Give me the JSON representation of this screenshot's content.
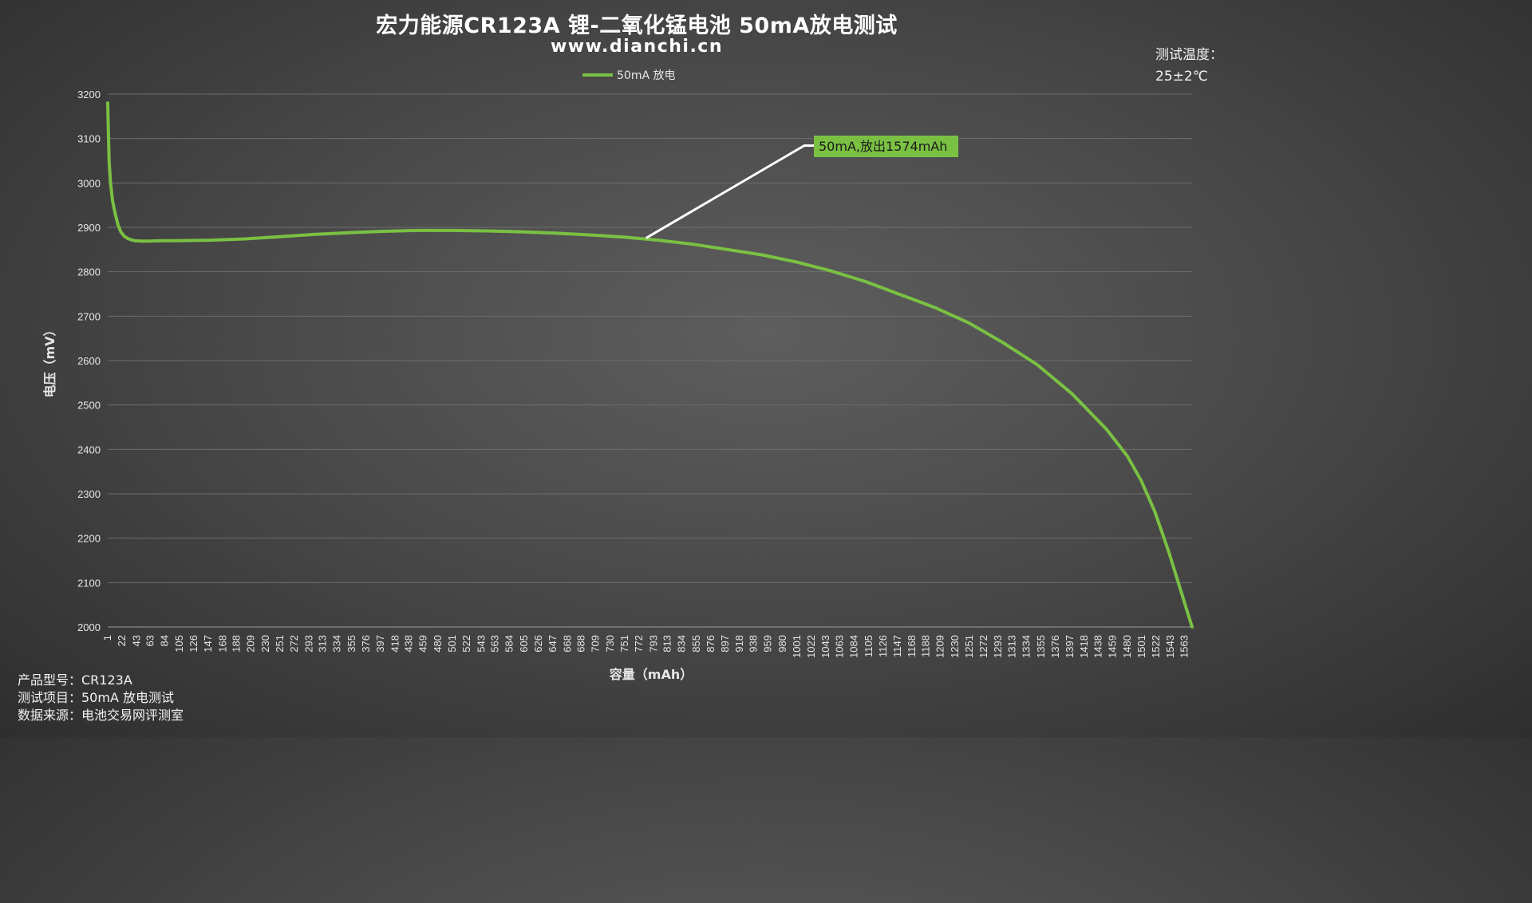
{
  "header": {
    "title": "宏力能源CR123A 锂-二氧化锰电池 50mA放电测试",
    "subtitle": "www.dianchi.cn"
  },
  "temperature": {
    "label": "测试温度：",
    "value": "25±2℃"
  },
  "info": {
    "model": "产品型号：CR123A",
    "test_item": "测试项目：50mA 放电测试",
    "source": "数据来源：电池交易网评测室"
  },
  "chart_data": {
    "type": "line",
    "title": "宏力能源CR123A 锂-二氧化锰电池 50mA放电测试",
    "subtitle": "www.dianchi.cn",
    "xlabel": "容量（mAh）",
    "ylabel": "电压（mV）",
    "ylim": [
      2000,
      3200
    ],
    "yticks": [
      2000,
      2100,
      2200,
      2300,
      2400,
      2500,
      2600,
      2700,
      2800,
      2900,
      3000,
      3100,
      3200
    ],
    "xticks": [
      1,
      22,
      43,
      63,
      84,
      105,
      126,
      147,
      168,
      188,
      209,
      230,
      251,
      272,
      293,
      313,
      334,
      355,
      376,
      397,
      418,
      438,
      459,
      480,
      501,
      522,
      543,
      563,
      584,
      605,
      626,
      647,
      668,
      688,
      709,
      730,
      751,
      772,
      793,
      813,
      834,
      855,
      876,
      897,
      918,
      938,
      959,
      980,
      1001,
      1022,
      1043,
      1063,
      1084,
      1105,
      1126,
      1147,
      1168,
      1188,
      1209,
      1230,
      1251,
      1272,
      1293,
      1313,
      1334,
      1355,
      1376,
      1397,
      1418,
      1438,
      1459,
      1480,
      1501,
      1522,
      1543,
      1563
    ],
    "xlim": [
      1,
      1574
    ],
    "grid": true,
    "legend_position": "top-center",
    "colors": {
      "series": "#7ac143",
      "leader": "#ffffff"
    },
    "series": [
      {
        "name": "50mA 放电",
        "x": [
          1,
          2,
          3,
          5,
          8,
          12,
          16,
          20,
          25,
          30,
          35,
          40,
          50,
          60,
          80,
          100,
          150,
          200,
          250,
          300,
          350,
          400,
          450,
          500,
          550,
          600,
          650,
          700,
          750,
          800,
          850,
          900,
          950,
          1000,
          1050,
          1100,
          1150,
          1200,
          1250,
          1300,
          1350,
          1400,
          1450,
          1480,
          1500,
          1520,
          1540,
          1550,
          1560,
          1570,
          1574
        ],
        "y": [
          3180,
          3110,
          3050,
          3000,
          2960,
          2930,
          2905,
          2890,
          2880,
          2875,
          2872,
          2870,
          2869,
          2869,
          2870,
          2870,
          2871,
          2874,
          2879,
          2884,
          2888,
          2891,
          2893,
          2893,
          2892,
          2890,
          2887,
          2883,
          2878,
          2871,
          2862,
          2850,
          2838,
          2822,
          2802,
          2778,
          2749,
          2720,
          2685,
          2640,
          2590,
          2525,
          2445,
          2385,
          2330,
          2260,
          2170,
          2120,
          2070,
          2020,
          2000
        ]
      }
    ],
    "annotation": {
      "text": "50mA,放出1574mAh",
      "anchor": [
        782,
        2876
      ],
      "color": "#7ac143"
    }
  }
}
